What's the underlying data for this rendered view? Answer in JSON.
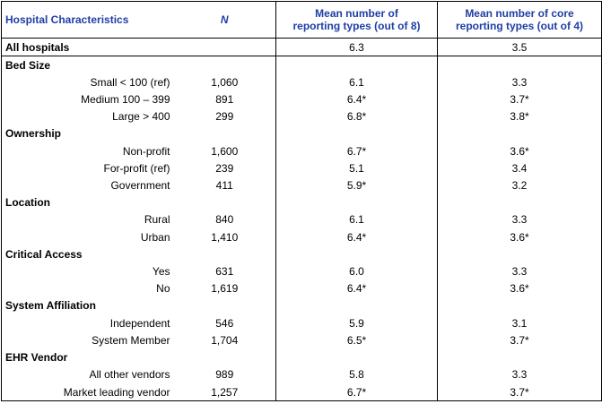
{
  "header": {
    "characteristics": "Hospital Characteristics",
    "n": "N",
    "mean_line1": "Mean number of",
    "mean_line2": "reporting types (out of 8)",
    "core_line1": "Mean number of core",
    "core_line2": "reporting types (out of 4)"
  },
  "overall": {
    "label": "All hospitals",
    "n": "",
    "mean": "6.3",
    "core": "3.5"
  },
  "sections": [
    {
      "title": "Bed Size",
      "rows": [
        {
          "label": "Small < 100 (ref)",
          "n": "1,060",
          "mean": "6.1",
          "core": "3.3"
        },
        {
          "label": "Medium 100 – 399",
          "n": "891",
          "mean": "6.4*",
          "core": "3.7*"
        },
        {
          "label": "Large > 400",
          "n": "299",
          "mean": "6.8*",
          "core": "3.8*"
        }
      ]
    },
    {
      "title": "Ownership",
      "rows": [
        {
          "label": "Non-profit",
          "n": "1,600",
          "mean": "6.7*",
          "core": "3.6*"
        },
        {
          "label": "For-profit (ref)",
          "n": "239",
          "mean": "5.1",
          "core": "3.4"
        },
        {
          "label": "Government",
          "n": "411",
          "mean": "5.9*",
          "core": "3.2"
        }
      ]
    },
    {
      "title": "Location",
      "rows": [
        {
          "label": "Rural",
          "n": "840",
          "mean": "6.1",
          "core": "3.3"
        },
        {
          "label": "Urban",
          "n": "1,410",
          "mean": "6.4*",
          "core": "3.6*"
        }
      ]
    },
    {
      "title": "Critical Access",
      "rows": [
        {
          "label": "Yes",
          "n": "631",
          "mean": "6.0",
          "core": "3.3"
        },
        {
          "label": "No",
          "n": "1,619",
          "mean": "6.4*",
          "core": "3.6*"
        }
      ]
    },
    {
      "title": "System Affiliation",
      "rows": [
        {
          "label": "Independent",
          "n": "546",
          "mean": "5.9",
          "core": "3.1"
        },
        {
          "label": "System Member",
          "n": "1,704",
          "mean": "6.5*",
          "core": "3.7*"
        }
      ]
    },
    {
      "title": "EHR Vendor",
      "rows": [
        {
          "label": "All other vendors",
          "n": "989",
          "mean": "5.8",
          "core": "3.3"
        },
        {
          "label": "Market leading vendor",
          "n": "1,257",
          "mean": "6.7*",
          "core": "3.7*"
        }
      ]
    }
  ]
}
